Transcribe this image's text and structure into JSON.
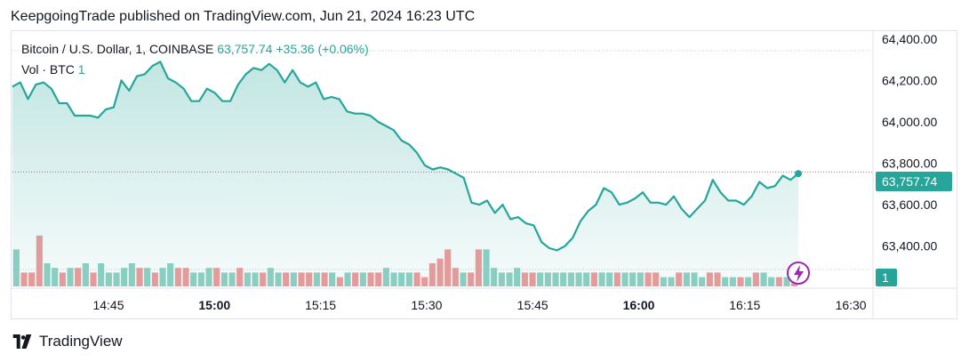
{
  "publisher_line": "KeepgoingTrade published on TradingView.com, Jun 21, 2024 16:23 UTC",
  "legend": {
    "symbol": "Bitcoin / U.S. Dollar, 1, COINBASE",
    "price": "63,757.74",
    "change": "+35.36 (+0.06%)",
    "vol_label": "Vol · BTC",
    "vol_value": "1"
  },
  "footer": {
    "brand": "TradingView"
  },
  "colors": {
    "line": "#26a69a",
    "up_bar": "#8fd0c4",
    "down_bar": "#ef9a9a",
    "last_price_tag": "#26a69a",
    "lightning": "#9c27b0"
  },
  "icons": {
    "lightning": "lightning-icon",
    "logo": "tradingview-logo-icon"
  },
  "chart_data": {
    "type": "area",
    "x_ticks": [
      "14:45",
      "15:00",
      "15:15",
      "15:30",
      "15:45",
      "16:00",
      "16:15",
      "16:30"
    ],
    "x_ticks_bold": [
      "15:00",
      "16:00"
    ],
    "y_ticks": [
      "64,400.00",
      "64,200.00",
      "64,000.00",
      "63,800.00",
      "63,600.00",
      "63,400.00"
    ],
    "y_tick_values": [
      64400,
      64200,
      64000,
      63800,
      63600,
      63400
    ],
    "ylim": [
      63300,
      64425
    ],
    "last_price_label": "63,757.74",
    "last_price": 63757.74,
    "volume_label": "1",
    "price_series": [
      64170,
      64190,
      64110,
      64180,
      64190,
      64160,
      64090,
      64090,
      64030,
      64030,
      64030,
      64020,
      64060,
      64070,
      64200,
      64150,
      64220,
      64230,
      64270,
      64290,
      64210,
      64190,
      64160,
      64100,
      64100,
      64160,
      64140,
      64100,
      64100,
      64180,
      64230,
      64260,
      64250,
      64280,
      64250,
      64190,
      64250,
      64190,
      64170,
      64190,
      64110,
      64120,
      64110,
      64050,
      64040,
      64040,
      64030,
      64000,
      63980,
      63960,
      63910,
      63890,
      63850,
      63790,
      63770,
      63780,
      63770,
      63750,
      63730,
      63610,
      63600,
      63620,
      63560,
      63600,
      63530,
      63540,
      63510,
      63500,
      63420,
      63390,
      63380,
      63400,
      63440,
      63520,
      63570,
      63600,
      63680,
      63660,
      63600,
      63610,
      63630,
      63660,
      63610,
      63610,
      63600,
      63640,
      63580,
      63540,
      63580,
      63620,
      63720,
      63660,
      63620,
      63620,
      63600,
      63640,
      63710,
      63680,
      63690,
      63740,
      63720,
      63750
    ],
    "volume_series": [
      8,
      3,
      3,
      11,
      5,
      4,
      3,
      4,
      4,
      5,
      3,
      5,
      3,
      3,
      4,
      5,
      4,
      4,
      3,
      4,
      5,
      4,
      4,
      3,
      3,
      4,
      4,
      3,
      3,
      4,
      3,
      3,
      3,
      4,
      3,
      3,
      3,
      3,
      3,
      3,
      3,
      3,
      2,
      3,
      3,
      3,
      3,
      3,
      4,
      3,
      3,
      3,
      3,
      2,
      5,
      6,
      8,
      4,
      3,
      3,
      8,
      8,
      4,
      3,
      3,
      4,
      3,
      3,
      3,
      3,
      3,
      3,
      3,
      3,
      3,
      3,
      3,
      3,
      3,
      3,
      3,
      3,
      3,
      3,
      2,
      2,
      3,
      3,
      3,
      2,
      3,
      3,
      2,
      2,
      2,
      2,
      3,
      3,
      2,
      2,
      2,
      1
    ],
    "volume_up": [
      true,
      false,
      false,
      false,
      true,
      true,
      false,
      true,
      false,
      true,
      false,
      true,
      true,
      true,
      true,
      true,
      false,
      true,
      false,
      true,
      true,
      false,
      false,
      true,
      true,
      true,
      false,
      true,
      true,
      false,
      true,
      true,
      false,
      true,
      true,
      false,
      true,
      false,
      false,
      true,
      false,
      true,
      false,
      true,
      false,
      true,
      false,
      false,
      true,
      true,
      true,
      true,
      false,
      false,
      false,
      false,
      false,
      false,
      true,
      false,
      false,
      true,
      true,
      true,
      true,
      true,
      false,
      false,
      true,
      true,
      true,
      true,
      true,
      true,
      true,
      false,
      true,
      true,
      false,
      true,
      true,
      true,
      false,
      false,
      true,
      true,
      false,
      true,
      true,
      true,
      false,
      false,
      true,
      true,
      false,
      true,
      false,
      true,
      true,
      false,
      true,
      false
    ]
  }
}
